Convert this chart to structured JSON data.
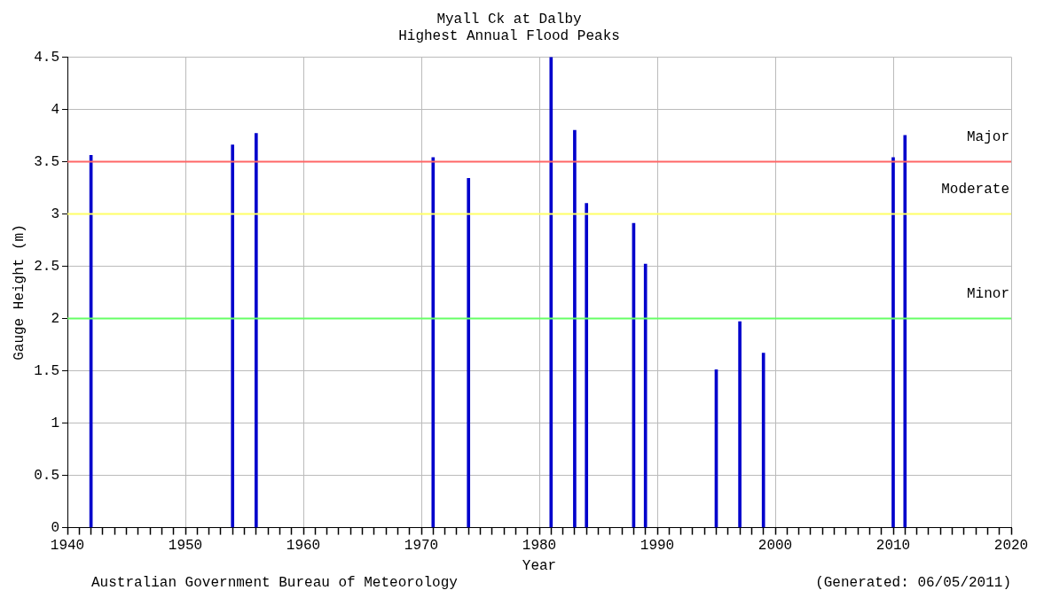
{
  "chart_data": {
    "type": "bar",
    "title": "Myall Ck at Dalby",
    "subtitle": "Highest Annual Flood Peaks",
    "xlabel": "Year",
    "ylabel": "Gauge Height (m)",
    "x": [
      1942,
      1954,
      1956,
      1971,
      1974,
      1981,
      1983,
      1984,
      1988,
      1989,
      1995,
      1997,
      1999,
      2010,
      2011
    ],
    "series": [
      {
        "color": "#0000cc",
        "values": [
          3.56,
          3.66,
          3.77,
          3.54,
          3.34,
          4.5,
          3.8,
          3.1,
          2.91,
          2.52,
          1.51,
          1.97,
          1.67,
          3.54,
          3.75
        ]
      }
    ],
    "xlim": [
      1940,
      2020
    ],
    "xticks": [
      1940,
      {
        "value": 1941,
        "label": null
      },
      {
        "value": 1942,
        "label": null
      },
      {
        "value": 1943,
        "label": null
      },
      {
        "value": 1944,
        "label": null
      },
      {
        "value": 1945,
        "label": null
      },
      {
        "value": 1946,
        "label": null
      },
      {
        "value": 1947,
        "label": null
      },
      {
        "value": 1948,
        "label": null
      },
      {
        "value": 1949,
        "label": null
      },
      1950,
      {
        "value": 1951,
        "label": null
      },
      {
        "value": 1952,
        "label": null
      },
      {
        "value": 1953,
        "label": null
      },
      {
        "value": 1954,
        "label": null
      },
      {
        "value": 1955,
        "label": null
      },
      {
        "value": 1956,
        "label": null
      },
      {
        "value": 1957,
        "label": null
      },
      {
        "value": 1958,
        "label": null
      },
      {
        "value": 1959,
        "label": null
      },
      1960,
      {
        "value": 1961,
        "label": null
      },
      {
        "value": 1962,
        "label": null
      },
      {
        "value": 1963,
        "label": null
      },
      {
        "value": 1964,
        "label": null
      },
      {
        "value": 1965,
        "label": null
      },
      {
        "value": 1966,
        "label": null
      },
      {
        "value": 1967,
        "label": null
      },
      {
        "value": 1968,
        "label": null
      },
      {
        "value": 1969,
        "label": null
      },
      1970,
      {
        "value": 1971,
        "label": null
      },
      {
        "value": 1972,
        "label": null
      },
      {
        "value": 1973,
        "label": null
      },
      {
        "value": 1974,
        "label": null
      },
      {
        "value": 1975,
        "label": null
      },
      {
        "value": 1976,
        "label": null
      },
      {
        "value": 1977,
        "label": null
      },
      {
        "value": 1978,
        "label": null
      },
      {
        "value": 1979,
        "label": null
      },
      1980,
      {
        "value": 1981,
        "label": null
      },
      {
        "value": 1982,
        "label": null
      },
      {
        "value": 1983,
        "label": null
      },
      {
        "value": 1984,
        "label": null
      },
      {
        "value": 1985,
        "label": null
      },
      {
        "value": 1986,
        "label": null
      },
      {
        "value": 1987,
        "label": null
      },
      {
        "value": 1988,
        "label": null
      },
      {
        "value": 1989,
        "label": null
      },
      1990,
      {
        "value": 1991,
        "label": null
      },
      {
        "value": 1992,
        "label": null
      },
      {
        "value": 1993,
        "label": null
      },
      {
        "value": 1994,
        "label": null
      },
      {
        "value": 1995,
        "label": null
      },
      {
        "value": 1996,
        "label": null
      },
      {
        "value": 1997,
        "label": null
      },
      {
        "value": 1998,
        "label": null
      },
      {
        "value": 1999,
        "label": null
      },
      2000,
      {
        "value": 2001,
        "label": null
      },
      {
        "value": 2002,
        "label": null
      },
      {
        "value": 2003,
        "label": null
      },
      {
        "value": 2004,
        "label": null
      },
      {
        "value": 2005,
        "label": null
      },
      {
        "value": 2006,
        "label": null
      },
      {
        "value": 2007,
        "label": null
      },
      {
        "value": 2008,
        "label": null
      },
      {
        "value": 2009,
        "label": null
      },
      2010,
      {
        "value": 2011,
        "label": null
      },
      {
        "value": 2012,
        "label": null
      },
      {
        "value": 2013,
        "label": null
      },
      {
        "value": 2014,
        "label": null
      },
      {
        "value": 2015,
        "label": null
      },
      {
        "value": 2016,
        "label": null
      },
      {
        "value": 2017,
        "label": null
      },
      {
        "value": 2018,
        "label": null
      },
      {
        "value": 2019,
        "label": null
      },
      2020
    ],
    "ylim": [
      0,
      4.5
    ],
    "yticks": [
      0,
      0.5,
      1,
      1.5,
      2,
      2.5,
      3,
      3.5,
      4,
      4.5
    ],
    "ref_lines": [
      {
        "axis": "y",
        "value": 3.5,
        "label": "Major",
        "color": "#ff6666"
      },
      {
        "axis": "y",
        "value": 3,
        "label": "Moderate",
        "color": "#ffff66"
      },
      {
        "axis": "y",
        "value": 2,
        "label": "Minor",
        "color": "#66ff66"
      }
    ],
    "annotations": [
      "Australian Government Bureau of Meteorology",
      "(Generated: 06/05/2011)"
    ],
    "grid": true,
    "legend": false
  }
}
